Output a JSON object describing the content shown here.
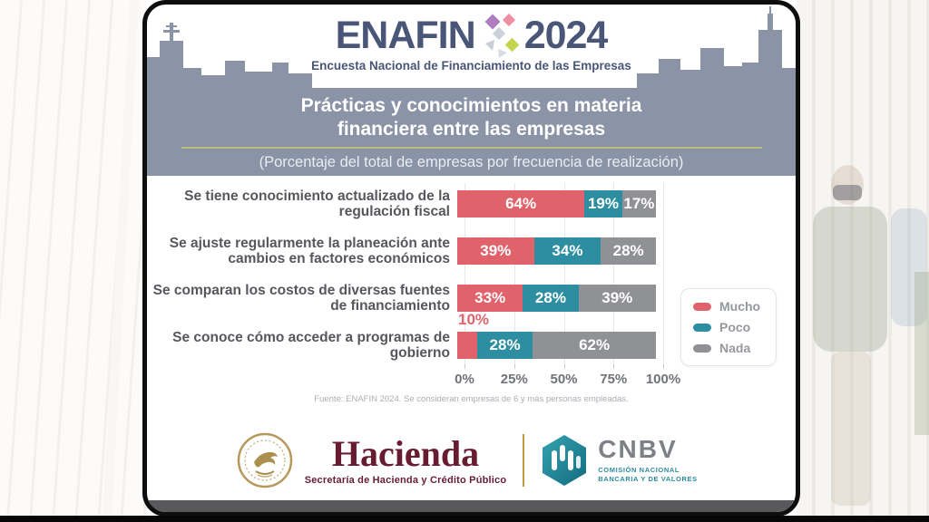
{
  "logo": {
    "brand": "ENAFIN",
    "year": "2024",
    "tagline": "Encuesta Nacional de Financiamiento de las Empresas"
  },
  "header": {
    "title": "Prácticas y conocimientos en materia financiera entre las empresas",
    "subtitle": "(Porcentaje del total de empresas por frecuencia de realización)"
  },
  "chart_data": {
    "type": "bar",
    "orientation": "horizontal",
    "stacked": true,
    "categories": [
      "Se tiene conocimiento actualizado de la regulación fiscal",
      "Se ajuste regularmente la planeación ante cambios en factores económicos",
      "Se comparan los costos de diversas fuentes de financiamiento",
      "Se conoce cómo acceder a programas de gobierno"
    ],
    "series": [
      {
        "name": "Mucho",
        "color": "#e0636b",
        "values": [
          64,
          39,
          33,
          10
        ]
      },
      {
        "name": "Poco",
        "color": "#2e8ea1",
        "values": [
          19,
          34,
          28,
          28
        ]
      },
      {
        "name": "Nada",
        "color": "#909194",
        "values": [
          17,
          28,
          39,
          62
        ]
      }
    ],
    "x_ticks": [
      "0%",
      "25%",
      "50%",
      "75%",
      "100%"
    ],
    "xlim": [
      0,
      100
    ],
    "grid": true,
    "legend_position": "right",
    "value_label_format": "percent"
  },
  "source": "Fuente: ENAFIN 2024. Se consideran empresas de 6 y más personas empleadas.",
  "footer": {
    "hacienda": {
      "name": "Hacienda",
      "subtitle": "Secretaría de Hacienda y Crédito Público"
    },
    "cnbv": {
      "name": "CNBV",
      "subtitle": "COMISIÓN NACIONAL BANCARIA Y DE VALORES"
    }
  },
  "theme": {
    "band_color": "#8b94a7",
    "accent_line": "#b8be7f",
    "brand_text": "#4a5678",
    "hacienda_maroon": "#681c32",
    "gold": "#bf9b3f",
    "cnbv_teal": "#2e8ca0"
  }
}
